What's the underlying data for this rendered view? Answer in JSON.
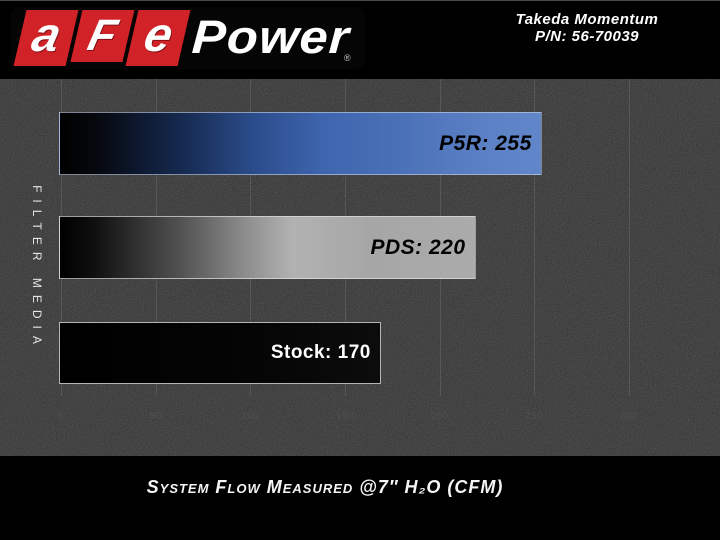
{
  "header": {
    "logo": {
      "letter_a": "a",
      "letter_F": "F",
      "letter_e": "e",
      "power": "Power",
      "registered_mark": "®",
      "brand_red": "#d12228"
    },
    "product_line1": "Takeda Momentum",
    "product_line2": "P/N: 56-70039"
  },
  "chart_data": {
    "type": "bar",
    "orientation": "horizontal",
    "categories": [
      "P5R",
      "PDS",
      "Stock"
    ],
    "values": [
      255,
      220,
      170
    ],
    "bar_labels": [
      "P5R: 255",
      "PDS: 220",
      "Stock: 170"
    ],
    "xlim": [
      0,
      300
    ],
    "x_ticks": [
      0,
      50,
      100,
      150,
      200,
      250,
      300
    ],
    "xlabel": "System Flow Measured @7″ H₂O (CFM)",
    "ylabel": "FILTER MEDIA",
    "grid": "vertical",
    "legend": "none",
    "colors": {
      "P5R": "#3e65ae",
      "PDS": "#a9a9a9",
      "Stock": "#000000",
      "tick_text": "#4f4f4f",
      "background": "#1c1c1c"
    }
  }
}
